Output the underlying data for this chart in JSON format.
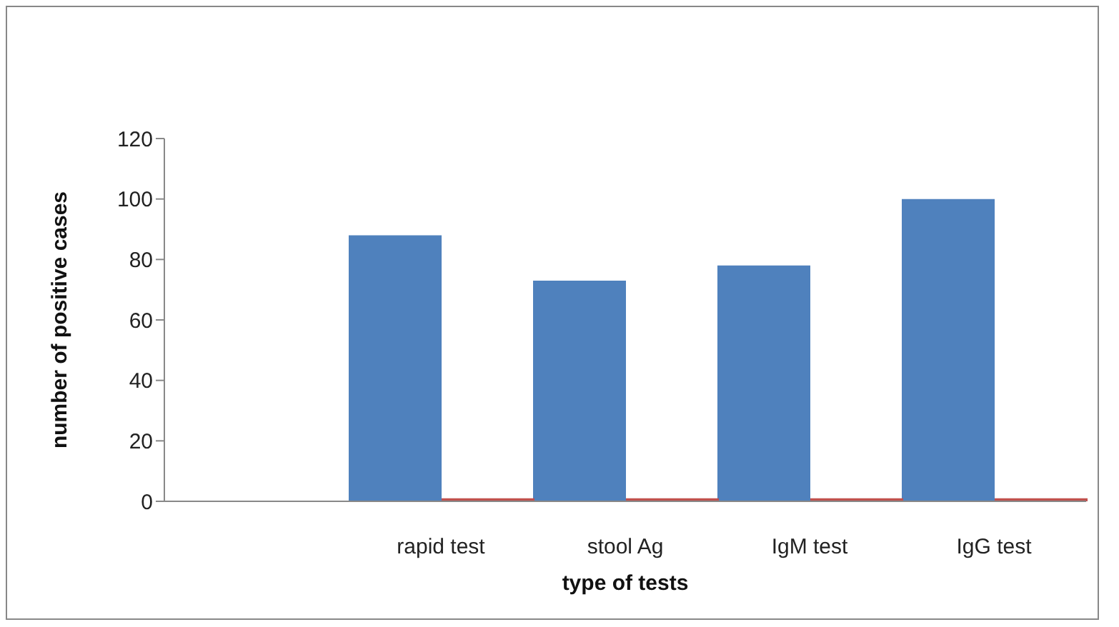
{
  "chart_data": {
    "type": "bar",
    "xlabel": "type of tests",
    "ylabel": "number of positive  cases",
    "categories": [
      null,
      "rapid test",
      "stool Ag",
      "IgM test",
      "IgG test"
    ],
    "series": [
      {
        "color": "#4f81bd",
        "values": [
          null,
          88,
          73,
          78,
          100
        ]
      },
      {
        "color": "#c0504d",
        "values": [
          null,
          1,
          1,
          1,
          1
        ]
      }
    ],
    "ylim": [
      0,
      120
    ],
    "yticks": [
      0,
      20,
      40,
      60,
      80,
      100,
      120
    ],
    "grid": false,
    "legend": false
  }
}
